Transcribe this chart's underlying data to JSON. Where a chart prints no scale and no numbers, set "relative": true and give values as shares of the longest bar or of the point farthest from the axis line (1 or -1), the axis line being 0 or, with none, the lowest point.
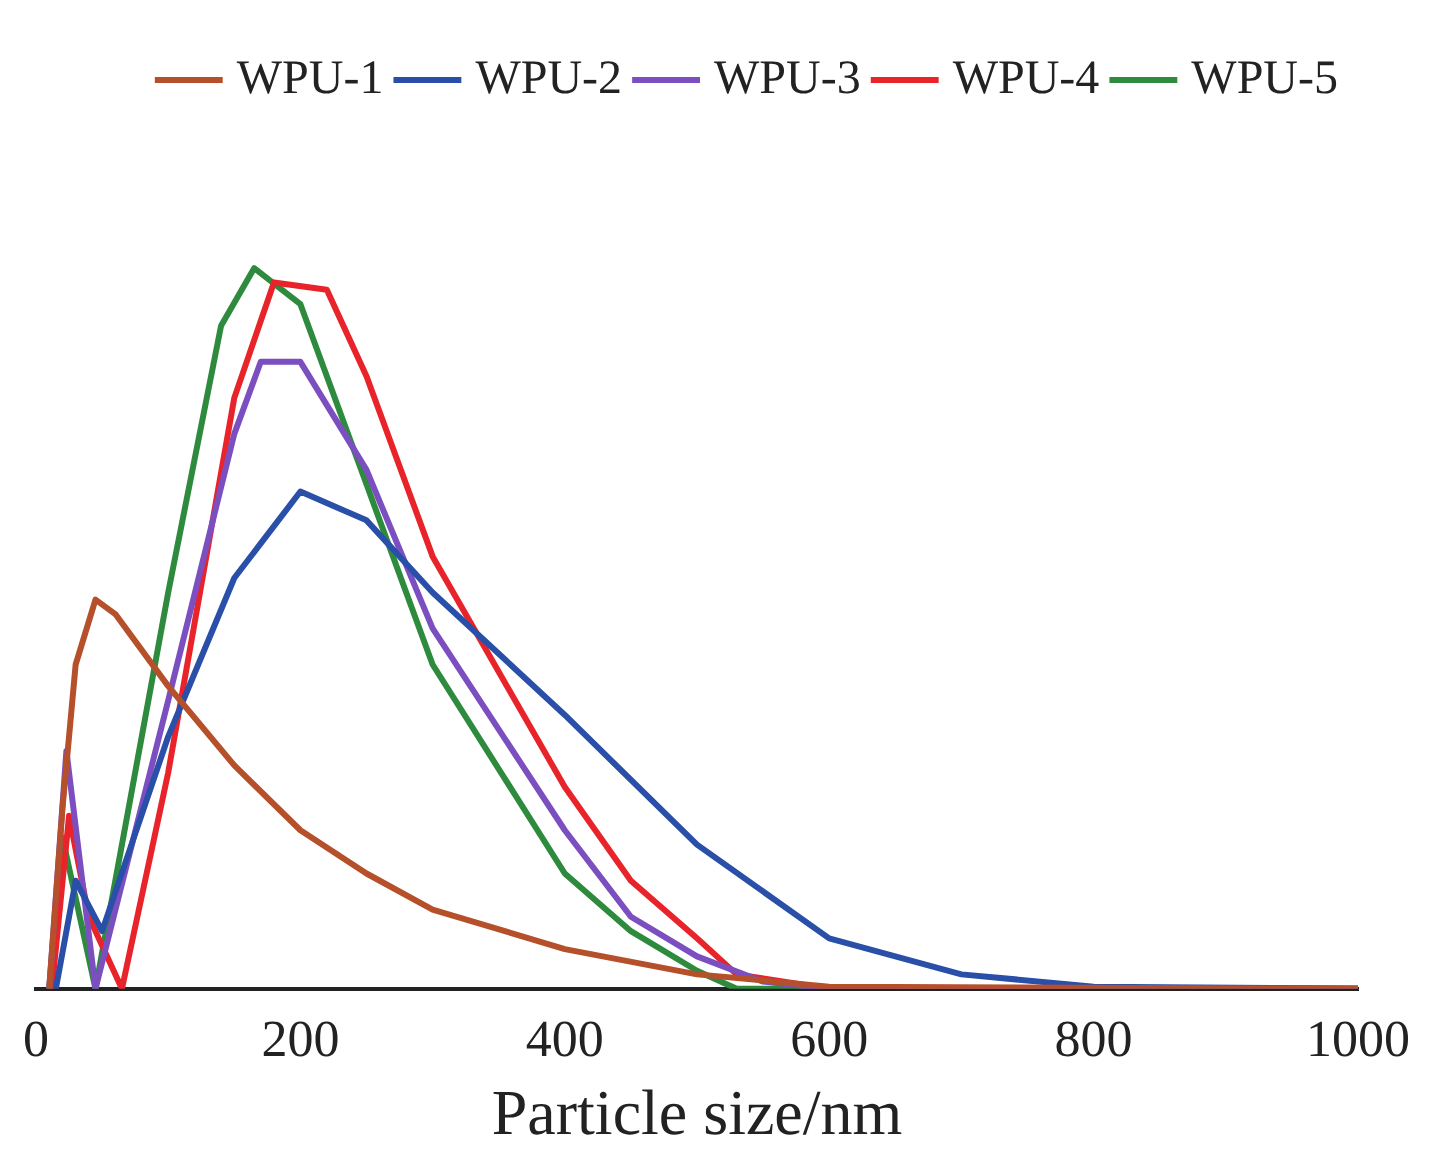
{
  "chart_data": {
    "type": "line",
    "xlabel": "Particle size/nm",
    "relative": true,
    "xlim": [
      0,
      1000
    ],
    "xticks": [
      0,
      200,
      400,
      600,
      800,
      1000
    ],
    "grid": false,
    "legend": "top right",
    "marker": "none",
    "line_style": "solid",
    "series": [
      {
        "name": "WPU-1",
        "color": "#b5502a",
        "x": [
          10,
          20,
          30,
          45,
          60,
          100,
          150,
          200,
          250,
          300,
          400,
          500,
          600,
          1000
        ],
        "values": [
          0,
          0.25,
          0.45,
          0.54,
          0.52,
          0.42,
          0.31,
          0.22,
          0.16,
          0.11,
          0.055,
          0.02,
          0.003,
          0
        ]
      },
      {
        "name": "WPU-2",
        "color": "#2a4fa8",
        "x": [
          15,
          30,
          50,
          100,
          150,
          200,
          250,
          300,
          400,
          500,
          600,
          700,
          800,
          1000
        ],
        "values": [
          0,
          0.15,
          0.08,
          0.35,
          0.57,
          0.69,
          0.65,
          0.55,
          0.38,
          0.2,
          0.07,
          0.02,
          0.003,
          0
        ]
      },
      {
        "name": "WPU-3",
        "color": "#7b4fbf",
        "x": [
          10,
          23,
          45,
          100,
          150,
          170,
          200,
          250,
          300,
          400,
          450,
          500,
          550,
          600,
          1000
        ],
        "values": [
          0,
          0.33,
          0,
          0.4,
          0.77,
          0.87,
          0.87,
          0.72,
          0.5,
          0.22,
          0.1,
          0.045,
          0.01,
          0,
          0
        ]
      },
      {
        "name": "WPU-4",
        "color": "#e8232a",
        "x": [
          12,
          25,
          40,
          65,
          100,
          150,
          180,
          220,
          250,
          300,
          400,
          450,
          500,
          530,
          600,
          1000
        ],
        "values": [
          0,
          0.24,
          0.1,
          0,
          0.3,
          0.82,
          0.98,
          0.97,
          0.85,
          0.6,
          0.28,
          0.15,
          0.07,
          0.02,
          0,
          0
        ]
      },
      {
        "name": "WPU-5",
        "color": "#2e8b3e",
        "x": [
          10,
          20,
          45,
          100,
          140,
          165,
          200,
          250,
          300,
          400,
          450,
          500,
          530,
          1000
        ],
        "values": [
          0,
          0.21,
          0,
          0.55,
          0.92,
          1.0,
          0.95,
          0.7,
          0.45,
          0.16,
          0.08,
          0.025,
          0,
          0
        ]
      }
    ]
  }
}
